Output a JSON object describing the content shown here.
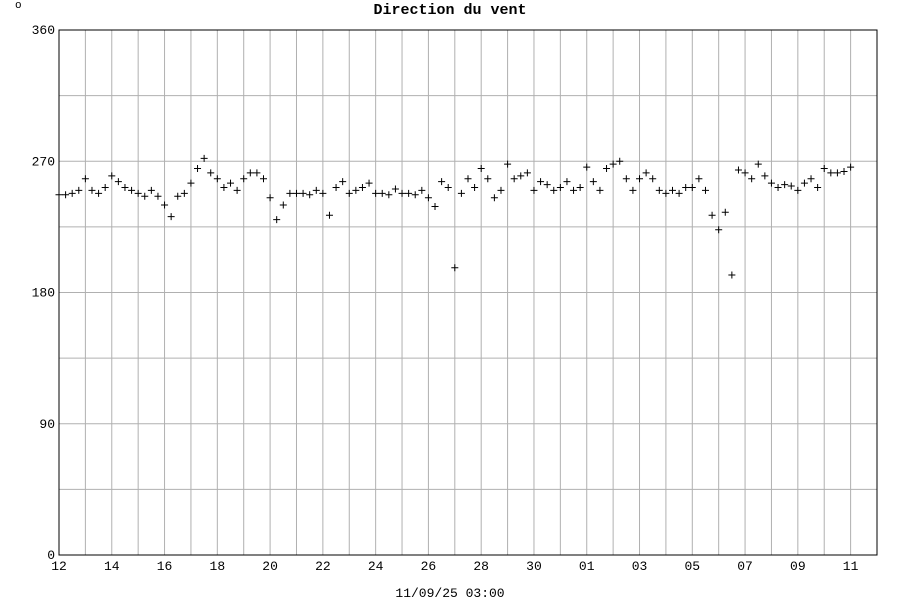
{
  "corner_mark": "o",
  "chart_data": {
    "type": "scatter",
    "title": "Direction du vent",
    "xlabel": "11/09/25 03:00",
    "color": "#000000",
    "marker": "+",
    "grid": true,
    "ylim": [
      0,
      360
    ],
    "yticks": [
      0,
      90,
      180,
      270,
      360
    ],
    "y_minor_grid": [
      45,
      135,
      225,
      315
    ],
    "xlim": [
      0,
      31
    ],
    "xticks": [
      {
        "value": 0,
        "label": "12"
      },
      {
        "value": 2,
        "label": "14"
      },
      {
        "value": 4,
        "label": "16"
      },
      {
        "value": 6,
        "label": "18"
      },
      {
        "value": 8,
        "label": "20"
      },
      {
        "value": 10,
        "label": "22"
      },
      {
        "value": 12,
        "label": "24"
      },
      {
        "value": 14,
        "label": "26"
      },
      {
        "value": 16,
        "label": "28"
      },
      {
        "value": 18,
        "label": "30"
      },
      {
        "value": 20,
        "label": "01"
      },
      {
        "value": 22,
        "label": "03"
      },
      {
        "value": 24,
        "label": "05"
      },
      {
        "value": 26,
        "label": "07"
      },
      {
        "value": 28,
        "label": "09"
      },
      {
        "value": 30,
        "label": "11"
      }
    ],
    "x_minor_grid": [
      1,
      3,
      5,
      7,
      9,
      11,
      13,
      15,
      17,
      19,
      21,
      23,
      25,
      27,
      29
    ],
    "x": [
      0,
      0.25,
      0.5,
      0.75,
      1,
      1.25,
      1.5,
      1.75,
      2,
      2.25,
      2.5,
      2.75,
      3,
      3.25,
      3.5,
      3.75,
      4,
      4.25,
      4.5,
      4.75,
      5,
      5.25,
      5.5,
      5.75,
      6,
      6.25,
      6.5,
      6.75,
      7,
      7.25,
      7.5,
      7.75,
      8,
      8.25,
      8.5,
      8.75,
      9,
      9.25,
      9.5,
      9.75,
      10,
      10.25,
      10.5,
      10.75,
      11,
      11.25,
      11.5,
      11.75,
      12,
      12.25,
      12.5,
      12.75,
      13,
      13.25,
      13.5,
      13.75,
      14,
      14.25,
      14.5,
      14.75,
      15,
      15.25,
      15.5,
      15.75,
      16,
      16.25,
      16.5,
      16.75,
      17,
      17.25,
      17.5,
      17.75,
      18,
      18.25,
      18.5,
      18.75,
      19,
      19.25,
      19.5,
      19.75,
      20,
      20.25,
      20.5,
      20.75,
      21,
      21.25,
      21.5,
      21.75,
      22,
      22.25,
      22.5,
      22.75,
      23,
      23.25,
      23.5,
      23.75,
      24,
      24.25,
      24.5,
      24.75,
      25,
      25.25,
      25.5,
      25.75,
      26,
      26.25,
      26.5,
      26.75,
      27,
      27.25,
      27.5,
      27.75,
      28,
      28.25,
      28.5,
      28.75,
      29,
      29.25,
      29.5,
      29.75,
      30
    ],
    "values": [
      247,
      247,
      248,
      250,
      258,
      250,
      248,
      252,
      260,
      256,
      252,
      250,
      248,
      246,
      250,
      246,
      240,
      232,
      246,
      248,
      255,
      265,
      272,
      262,
      258,
      252,
      255,
      250,
      258,
      262,
      262,
      258,
      245,
      230,
      240,
      248,
      248,
      248,
      247,
      250,
      248,
      233,
      252,
      256,
      248,
      250,
      252,
      255,
      248,
      248,
      247,
      251,
      248,
      248,
      247,
      250,
      245,
      239,
      256,
      252,
      197,
      248,
      258,
      252,
      265,
      258,
      245,
      250,
      268,
      258,
      260,
      262,
      250,
      256,
      254,
      250,
      252,
      256,
      250,
      252,
      266,
      256,
      250,
      265,
      268,
      270,
      258,
      250,
      258,
      262,
      258,
      250,
      248,
      250,
      248,
      252,
      252,
      258,
      250,
      233,
      223,
      235,
      192,
      264,
      262,
      258,
      268,
      260,
      255,
      252,
      254,
      253,
      250,
      255,
      258,
      252,
      265,
      262,
      262,
      263,
      266
    ]
  }
}
